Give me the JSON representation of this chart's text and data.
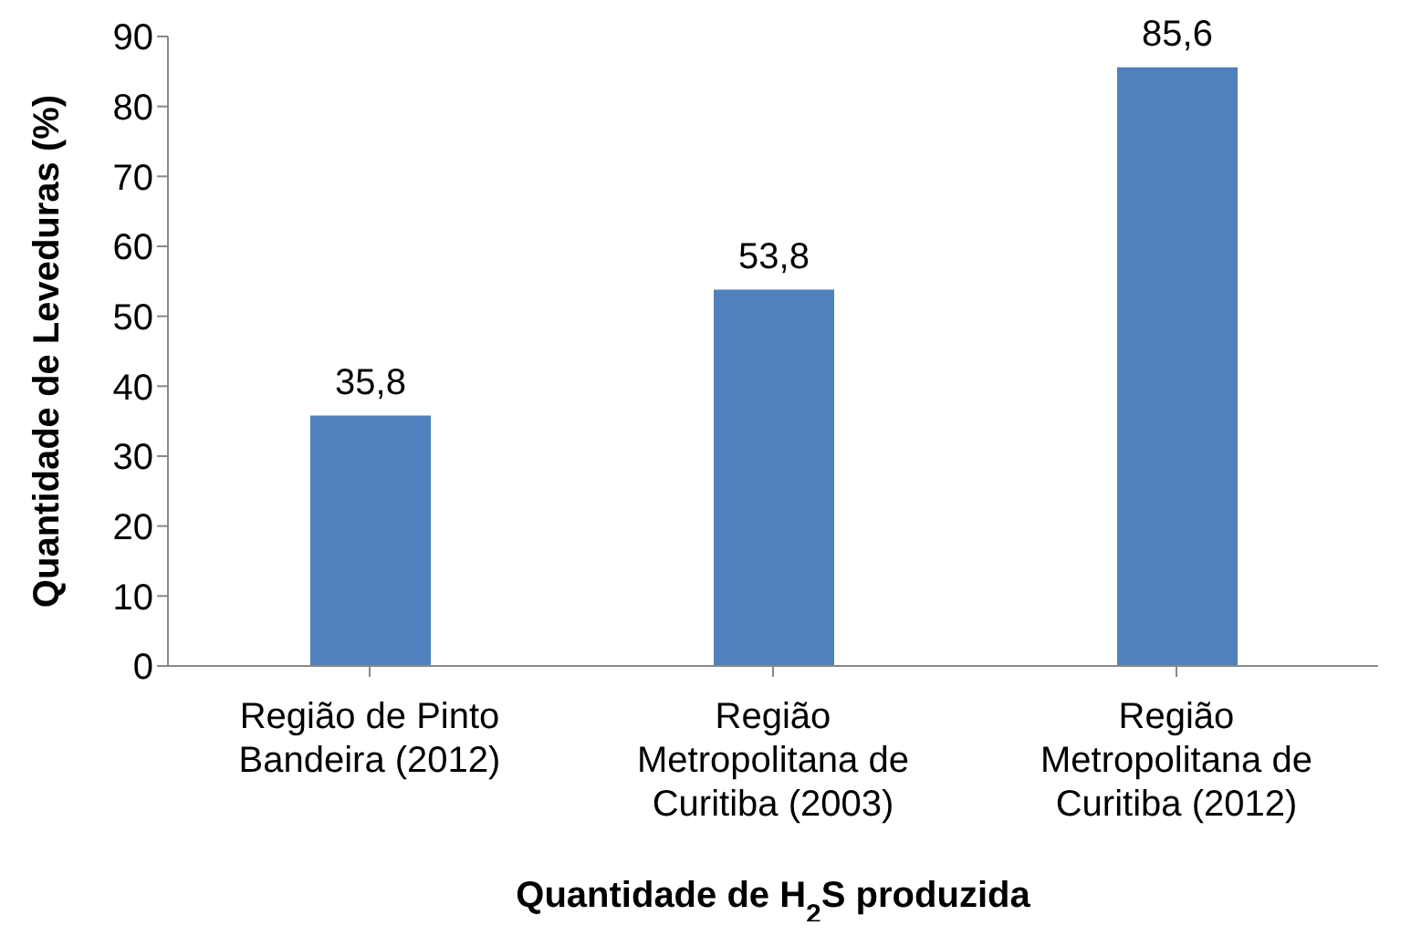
{
  "chart_data": {
    "type": "bar",
    "xlabel": "Quantidade de H$_{2}$S produzida",
    "ylabel": "Quantidade de Leveduras (%)",
    "categories": [
      "Região de Pinto Bandeira (2012)",
      "Região Metropolitana de Curitiba (2003)",
      "Região Metropolitana de Curitiba (2012)"
    ],
    "values": [
      35.8,
      53.8,
      85.6
    ],
    "value_labels": [
      "35,8",
      "53,8",
      "85,6"
    ],
    "color": "#4f81bd",
    "ylim": [
      0,
      90
    ],
    "yticks": [
      0,
      10,
      20,
      30,
      40,
      50,
      60,
      70,
      80,
      90
    ],
    "grid": false,
    "legend": false
  }
}
